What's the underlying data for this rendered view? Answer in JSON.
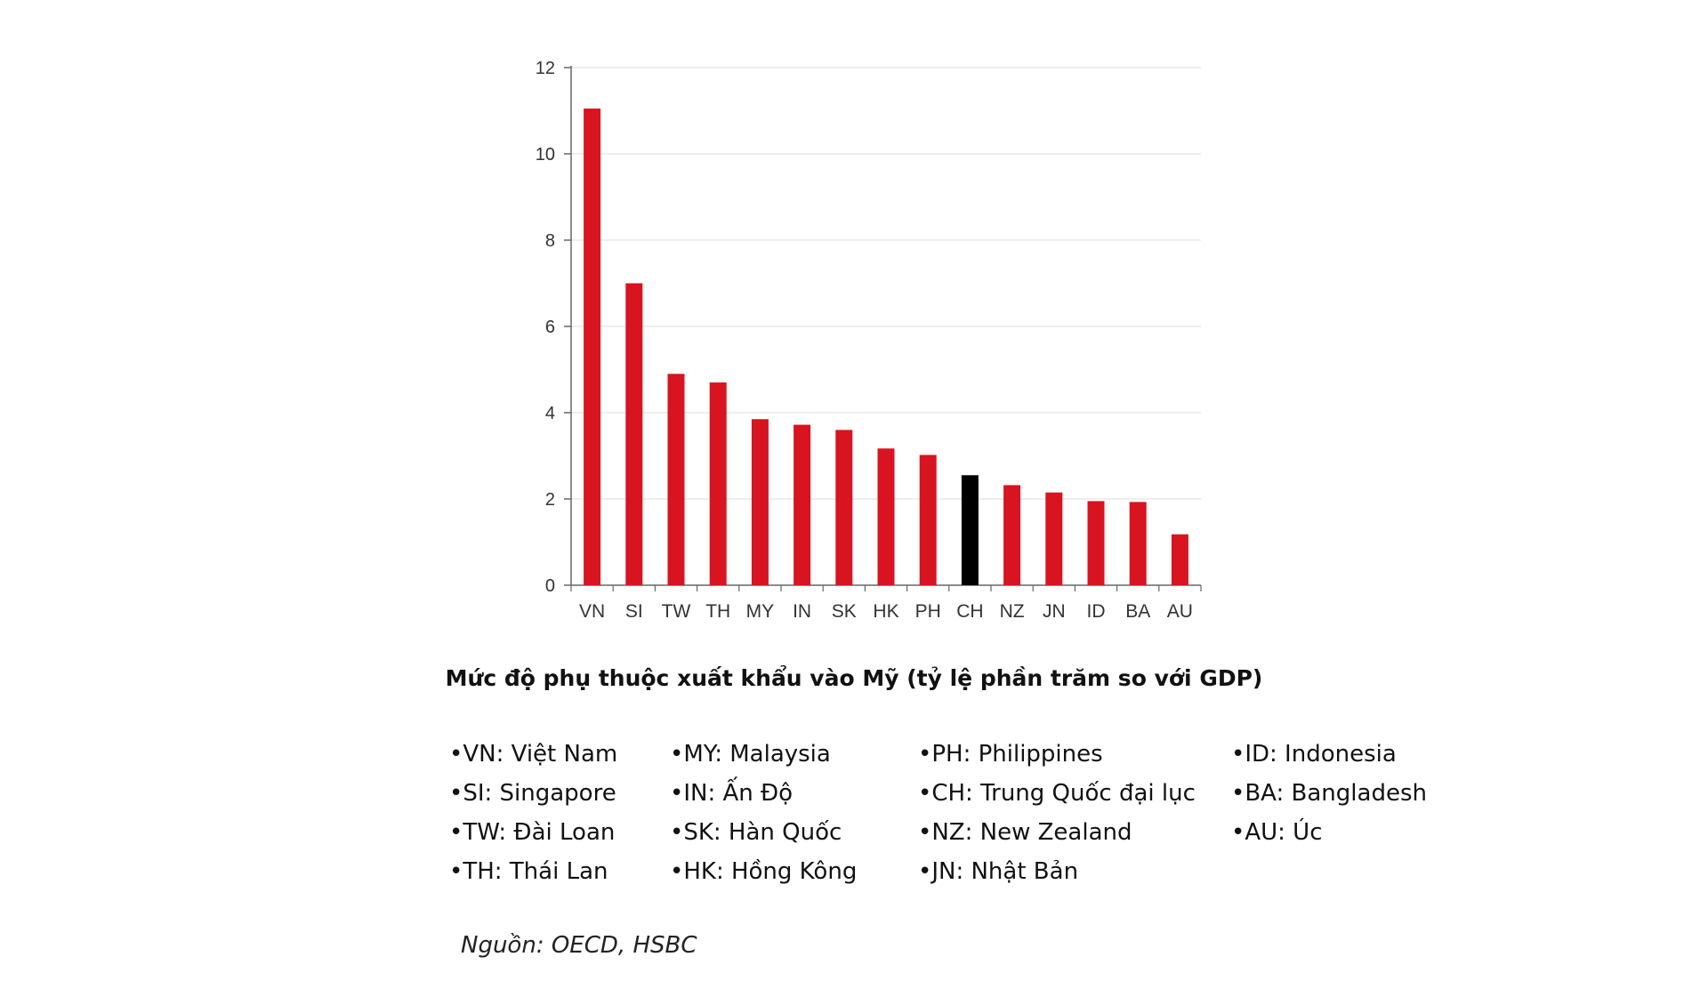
{
  "chart_data": {
    "type": "bar",
    "title": "Mức độ phụ thuộc xuất khẩu vào Mỹ (tỷ lệ phần trăm so với GDP)",
    "xlabel": "",
    "ylabel": "",
    "ylim": [
      0,
      12
    ],
    "yticks": [
      "0",
      "2",
      "4",
      "6",
      "8",
      "10",
      "12"
    ],
    "grid": true,
    "categories": [
      "VN",
      "SI",
      "TW",
      "TH",
      "MY",
      "IN",
      "SK",
      "HK",
      "PH",
      "CH",
      "NZ",
      "JN",
      "ID",
      "BA",
      "AU"
    ],
    "values": [
      11.05,
      7.0,
      4.9,
      4.7,
      3.85,
      3.72,
      3.6,
      3.17,
      3.02,
      2.55,
      2.32,
      2.15,
      1.95,
      1.93,
      1.18
    ],
    "bar_colors": [
      "#d7141f",
      "#d7141f",
      "#d7141f",
      "#d7141f",
      "#d7141f",
      "#d7141f",
      "#d7141f",
      "#d7141f",
      "#d7141f",
      "#000000",
      "#d7141f",
      "#d7141f",
      "#d7141f",
      "#d7141f",
      "#d7141f"
    ]
  },
  "legend": {
    "columns": [
      [
        "VN: Việt Nam",
        "SI: Singapore",
        "TW: Đài Loan",
        "TH: Thái Lan"
      ],
      [
        "MY: Malaysia",
        "IN: Ấn Độ",
        "SK: Hàn Quốc",
        "HK: Hồng Kông"
      ],
      [
        "PH: Philippines",
        "CH: Trung Quốc đại lục",
        "NZ: New Zealand",
        "JN: Nhật Bản"
      ],
      [
        "ID: Indonesia",
        "BA: Bangladesh",
        "AU: Úc"
      ]
    ]
  },
  "source": "Nguồn: OECD, HSBC"
}
